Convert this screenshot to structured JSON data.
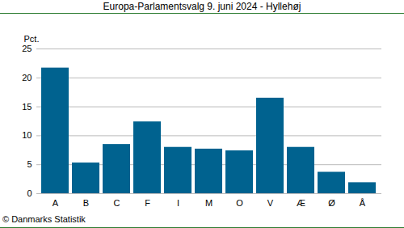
{
  "chart_data": {
    "type": "bar",
    "title": "Europa-Parlamentsvalg 9. juni 2024 - Hyllehøj",
    "y_label": "Pct.",
    "caption": "© Danmarks Statistik",
    "categories": [
      "A",
      "B",
      "C",
      "F",
      "I",
      "M",
      "O",
      "V",
      "Æ",
      "Ø",
      "Å"
    ],
    "values": [
      21.7,
      5.3,
      8.5,
      12.4,
      8.0,
      7.7,
      7.4,
      16.5,
      8.0,
      3.7,
      1.9
    ],
    "color": "#00628f",
    "ylim": [
      0,
      25
    ],
    "yticks": [
      0,
      5,
      10,
      15,
      20,
      25
    ],
    "grid": true
  }
}
